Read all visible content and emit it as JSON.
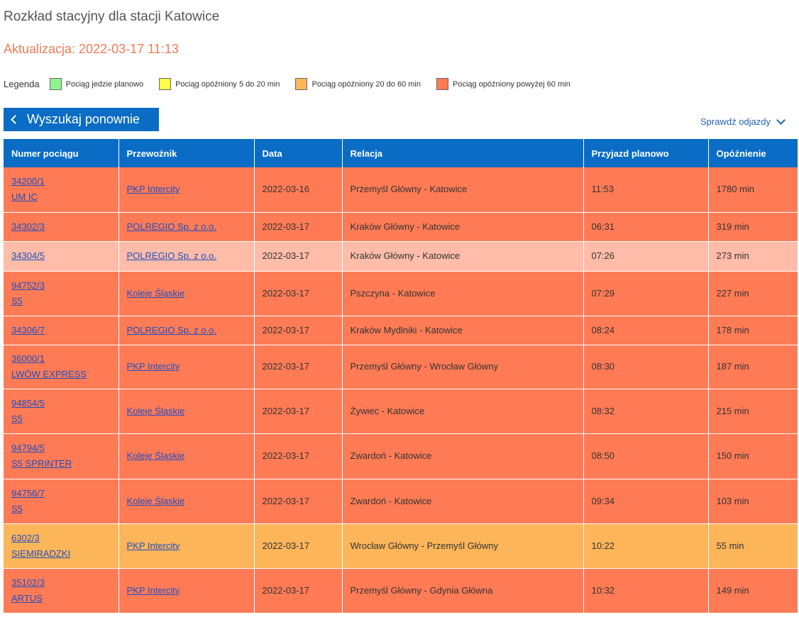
{
  "page": {
    "title": "Rozkład stacyjny dla stacji Katowice",
    "updated": "Aktualizacja: 2022-03-17 11:13"
  },
  "legend": {
    "label": "Legenda",
    "items": [
      {
        "label": "Pociąg jedzie planowo",
        "color": "#8ef58e"
      },
      {
        "label": "Pociąg opóźniony 5 do 20 min",
        "color": "#ffff44"
      },
      {
        "label": "Pociąg opóźniony 20 do 60 min",
        "color": "#fdb55a"
      },
      {
        "label": "Pociąg opóźniony powyżej 60 min",
        "color": "#ff7b55"
      }
    ]
  },
  "actions": {
    "back_label": "Wyszukaj ponownie",
    "departures_label": "Sprawdź odjazdy"
  },
  "table": {
    "headers": [
      "Numer pociągu",
      "Przewoźnik",
      "Data",
      "Relacja",
      "Przyjazd planowo",
      "Opóźnienie"
    ],
    "rows": [
      {
        "num": "34200/1",
        "name": "UM IC",
        "carrier": "PKP Intercity",
        "date": "2022-03-16",
        "route": "Przemyśl Główny - Katowice",
        "arrival": "11:53",
        "delay": "1780 min"
      },
      {
        "num": "34302/3",
        "name": "",
        "carrier": "POLREGIO Sp. z o.o.",
        "date": "2022-03-17",
        "route": "Kraków Główny - Katowice",
        "arrival": "06:31",
        "delay": "319 min"
      },
      {
        "num": "34304/5",
        "name": "",
        "carrier": "POLREGIO Sp. z o.o.",
        "date": "2022-03-17",
        "route": "Kraków Główny - Katowice",
        "arrival": "07:26",
        "delay": "273 min"
      },
      {
        "num": "94752/3",
        "name": "S5",
        "carrier": "Koleje Śląskie",
        "date": "2022-03-17",
        "route": "Pszczyna - Katowice",
        "arrival": "07:29",
        "delay": "227 min"
      },
      {
        "num": "34306/7",
        "name": "",
        "carrier": "POLREGIO Sp. z o.o.",
        "date": "2022-03-17",
        "route": "Kraków Mydlniki - Katowice",
        "arrival": "08:24",
        "delay": "178 min"
      },
      {
        "num": "36000/1",
        "name": "LWÓW EXPRESS",
        "carrier": "PKP Intercity",
        "date": "2022-03-17",
        "route": "Przemyśl Główny - Wrocław Główny",
        "arrival": "08:30",
        "delay": "187 min"
      },
      {
        "num": "94854/5",
        "name": "S5",
        "carrier": "Koleje Śląskie",
        "date": "2022-03-17",
        "route": "Żywiec - Katowice",
        "arrival": "08:32",
        "delay": "215 min"
      },
      {
        "num": "94794/5",
        "name": "S5 SPRINTER",
        "carrier": "Koleje Śląskie",
        "date": "2022-03-17",
        "route": "Zwardoń - Katowice",
        "arrival": "08:50",
        "delay": "150 min"
      },
      {
        "num": "94756/7",
        "name": "S5",
        "carrier": "Koleje Śląskie",
        "date": "2022-03-17",
        "route": "Zwardoń - Katowice",
        "arrival": "09:34",
        "delay": "103 min"
      },
      {
        "num": "6302/3",
        "name": "SIEMIRADZKI",
        "carrier": "PKP Intercity",
        "date": "2022-03-17",
        "route": "Wrocław Główny - Przemyśl Główny",
        "arrival": "10:22",
        "delay": "55 min"
      },
      {
        "num": "35102/3",
        "name": "ARTUS",
        "carrier": "PKP Intercity",
        "date": "2022-03-17",
        "route": "Przemyśl Główny - Gdynia Główna",
        "arrival": "10:32",
        "delay": "149 min"
      }
    ]
  }
}
